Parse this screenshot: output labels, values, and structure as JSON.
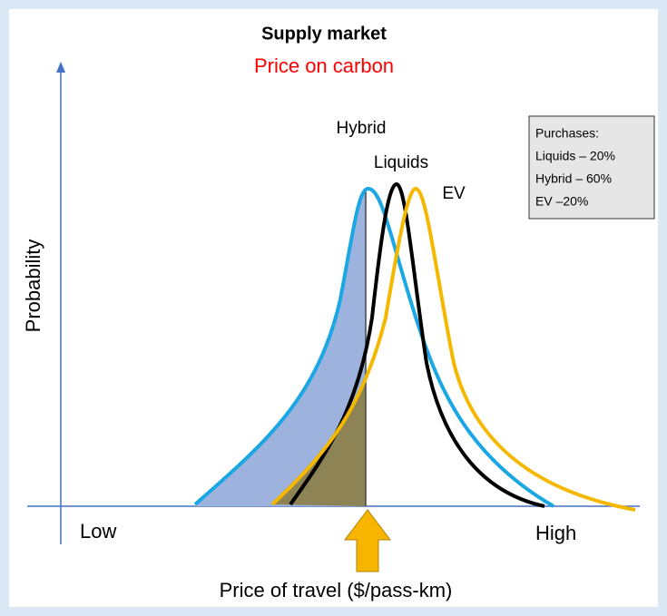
{
  "title": "Supply market",
  "subtitle": "Price on carbon",
  "curve_labels": {
    "hybrid": "Hybrid",
    "liquids": "Liquids",
    "ev": "EV"
  },
  "purchases": {
    "heading": "Purchases:",
    "lines": [
      "Liquids – 20%",
      "Hybrid – 60%",
      "EV –20%"
    ]
  },
  "axes": {
    "y_label": "Probability",
    "x_low": "Low",
    "x_high": "High",
    "x_label": "Price of travel ($/pass-km)"
  }
}
